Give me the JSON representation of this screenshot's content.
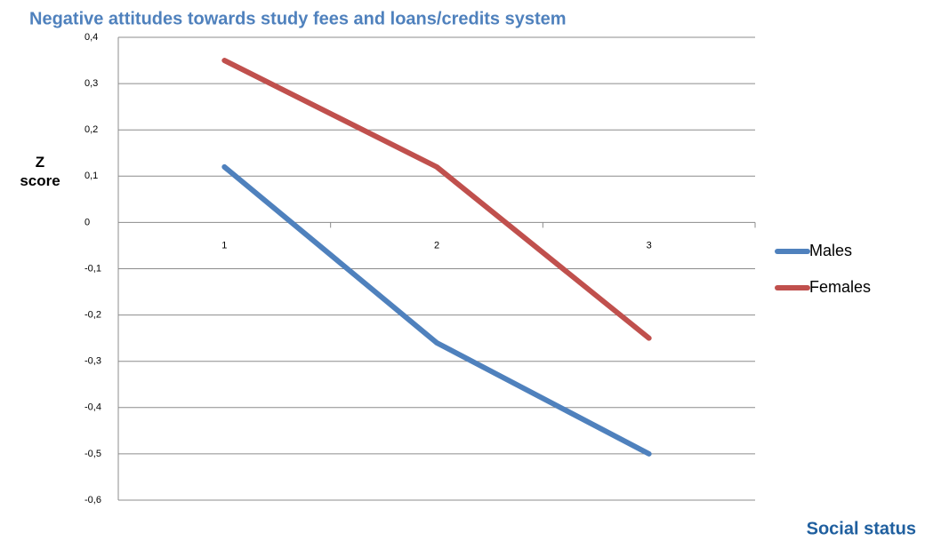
{
  "chart_data": {
    "type": "line",
    "title": "Negative attitudes towards study fees and loans/credits system",
    "y_label": "Z score",
    "x_label": "Social status",
    "categories": [
      "1",
      "2",
      "3"
    ],
    "series": [
      {
        "name": "Males",
        "color": "#4f81bd",
        "values": [
          0.12,
          -0.26,
          -0.5
        ]
      },
      {
        "name": "Females",
        "color": "#c0504d",
        "values": [
          0.35,
          0.12,
          -0.25
        ]
      }
    ],
    "ylim": [
      -0.6,
      0.4
    ],
    "yticks": [
      {
        "value": 0.4,
        "label": "0,4"
      },
      {
        "value": 0.3,
        "label": "0,3"
      },
      {
        "value": 0.2,
        "label": "0,2"
      },
      {
        "value": 0.1,
        "label": "0,1"
      },
      0,
      {
        "value": -0.1,
        "label": "-0,1"
      },
      {
        "value": -0.2,
        "label": "-0,2"
      },
      {
        "value": -0.3,
        "label": "-0,3"
      },
      {
        "value": -0.4,
        "label": "-0,4"
      },
      {
        "value": -0.5,
        "label": "-0,5"
      },
      {
        "value": -0.6,
        "label": "-0,6"
      }
    ],
    "grid": true,
    "legend": "right"
  }
}
